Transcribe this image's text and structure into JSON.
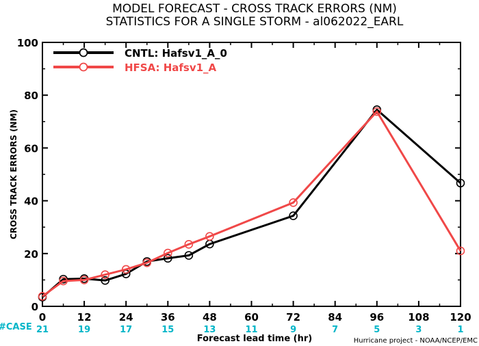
{
  "chart_data": {
    "type": "line",
    "title": "MODEL FORECAST - CROSS TRACK ERRORS (NM)",
    "subtitle": "STATISTICS FOR A SINGLE STORM - al062022_EARL",
    "xlabel": "Forecast lead time (hr)",
    "ylabel": "CROSS TRACK ERRORS (NM)",
    "xlim": [
      0,
      120
    ],
    "ylim": [
      0,
      100
    ],
    "x_ticks": [
      0,
      12,
      24,
      36,
      48,
      60,
      72,
      84,
      96,
      108,
      120
    ],
    "y_ticks": [
      0,
      20,
      40,
      60,
      80,
      100
    ],
    "grid": false,
    "legend_position": "top-left",
    "case_label": "#CASE",
    "case_color": "#00b5c8",
    "case_counts": [
      21,
      19,
      17,
      15,
      13,
      11,
      9,
      7,
      5,
      3,
      1
    ],
    "credit": "Hurricane project - NOAA/NCEP/EMC",
    "series": [
      {
        "name": "CNTL: Hafsv1_A_0",
        "color": "#000000",
        "x": [
          0,
          6,
          12,
          18,
          24,
          30,
          36,
          42,
          48,
          72,
          96,
          120
        ],
        "values": [
          3.5,
          10.3,
          10.5,
          9.8,
          12.3,
          17.0,
          18.2,
          19.3,
          23.6,
          34.3,
          74.5,
          46.7
        ]
      },
      {
        "name": "HFSA: Hafsv1_A",
        "color": "#f04848",
        "x": [
          0,
          6,
          12,
          18,
          24,
          30,
          36,
          42,
          48,
          72,
          96,
          120
        ],
        "values": [
          3.8,
          9.6,
          10.0,
          12.0,
          14.0,
          16.5,
          20.2,
          23.5,
          26.5,
          39.3,
          73.8,
          21.0
        ]
      }
    ]
  }
}
